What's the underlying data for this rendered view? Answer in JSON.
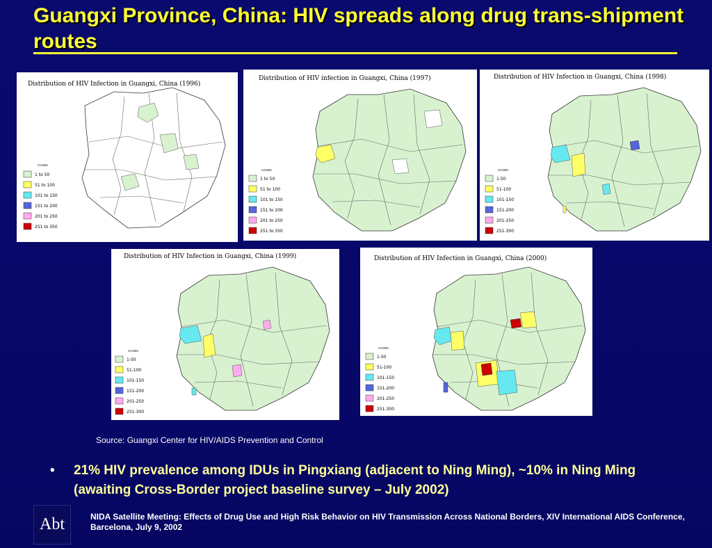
{
  "slide": {
    "title": "Guangxi Province, China:  HIV spreads along drug trans-shipment routes",
    "source": "Source: Guangxi Center for HIV/AIDS Prevention and Control",
    "bullet_symbol": "•",
    "bullet": "21% HIV prevalence among IDUs in Pingxiang (adjacent to Ning Ming), ~10% in Ning Ming (awaiting Cross-Border project baseline survey – July 2002)",
    "logo_text": "Abt",
    "footer": "NIDA Satellite Meeting: Effects of Drug Use and High Risk Behavior on HIV Transmission Across National Borders, XIV International AIDS Conference, Barcelona, July 9, 2002"
  },
  "colors": {
    "c1": "#d8f2d0",
    "c2": "#ffff66",
    "c3": "#66e8f0",
    "c4": "#5566dd",
    "c5": "#ffaaee",
    "c6": "#cc0000"
  },
  "maps": [
    {
      "title": "Distribution of HIV Infection in Guangxi,  China (1996)",
      "legend_header": "ccses",
      "legend": [
        "1 to 50",
        "51 to 100",
        "101 to 150",
        "151 to 200",
        "201 to 250",
        "251 to 350"
      ]
    },
    {
      "title": "Distribution of HIV infection in Guangxi,  China (1997)",
      "legend_header": "ccses",
      "legend": [
        "1 to 50",
        "51 to 100",
        "101 to 150",
        "151 to 200",
        "201 to 250",
        "251 to 350"
      ]
    },
    {
      "title": "Distribution of HIV Infection in Guangxi,  China (1998)",
      "legend_header": "ccses",
      "legend": [
        "1-50",
        "51-100",
        "101-150",
        "151-200",
        "201-250",
        "251-300"
      ]
    },
    {
      "title": "Distribution of HIV Infection in Guangxi,  China (1999)",
      "legend_header": "ccses",
      "legend": [
        "1-50",
        "51-100",
        "101-150",
        "151-200",
        "201-250",
        "251-300"
      ]
    },
    {
      "title": "Distribution of HIV Infection in Guangxi,  China (2000)",
      "legend_header": "ccses",
      "legend": [
        "1-50",
        "51-100",
        "101-150",
        "151-200",
        "201-250",
        "251-300"
      ]
    }
  ]
}
